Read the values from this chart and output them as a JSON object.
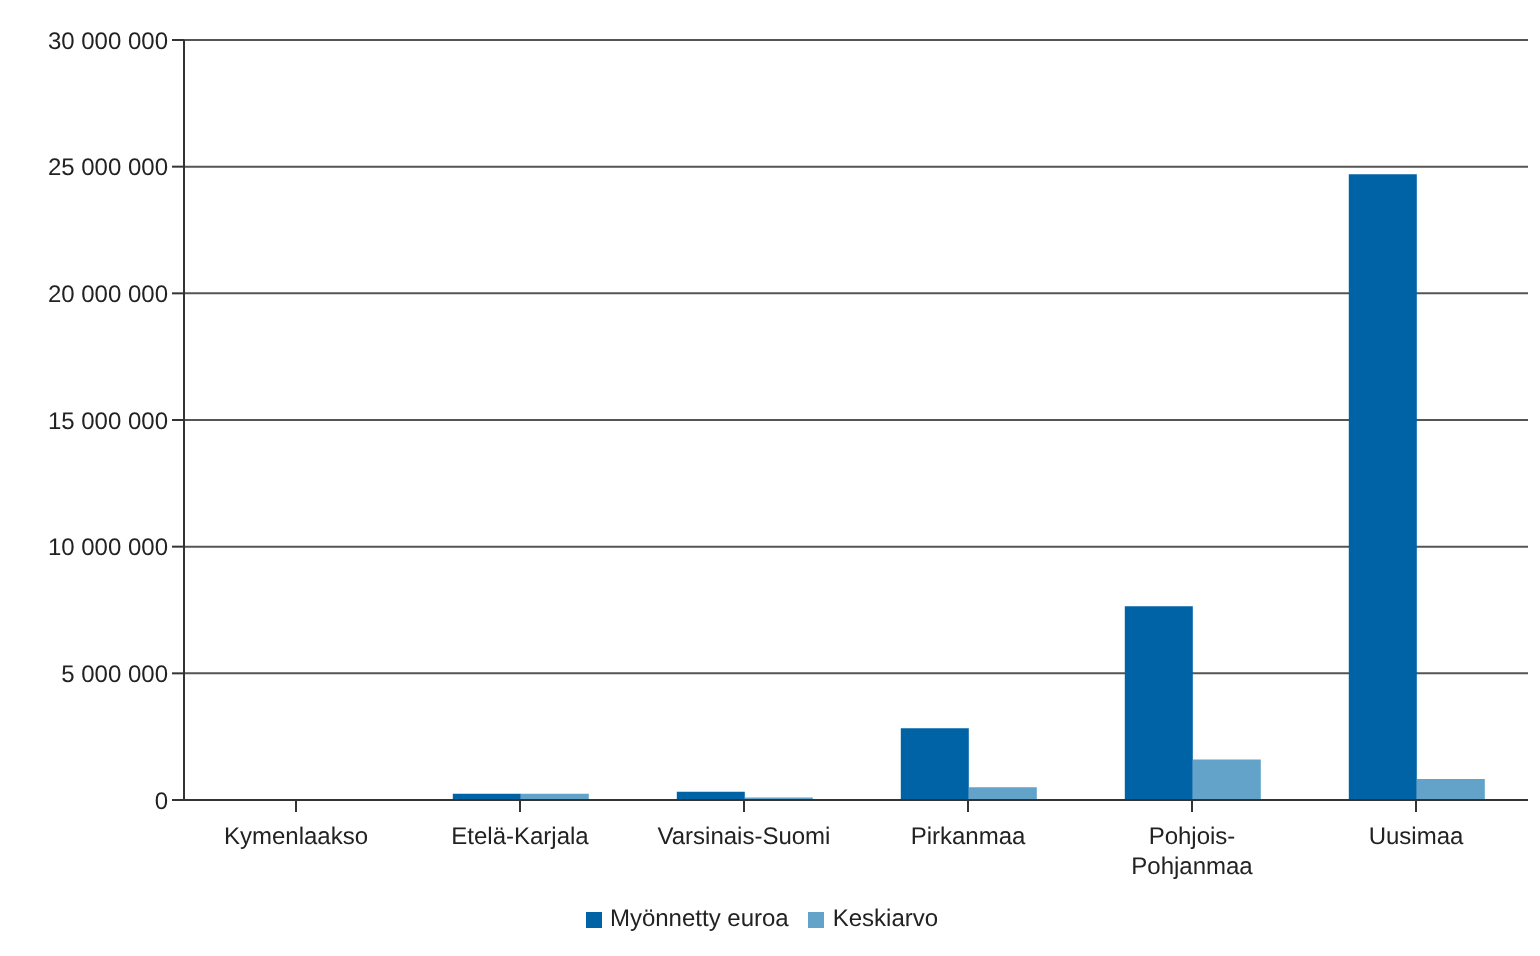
{
  "chart_data": {
    "type": "bar",
    "categories": [
      "Kymenlaakso",
      "Etelä-Karjala",
      "Varsinais-Suomi",
      "Pirkanmaa",
      "Pohjois-Pohjanmaa",
      "Uusimaa"
    ],
    "series": [
      {
        "name": "Myönnetty euroa",
        "color": "#0063a6",
        "values": [
          null,
          250000,
          330000,
          2830000,
          7650000,
          24700000
        ]
      },
      {
        "name": "Keskiarvo",
        "color": "#63a2c9",
        "values": [
          null,
          250000,
          100000,
          500000,
          1600000,
          830000
        ]
      }
    ],
    "ylim": [
      0,
      30000000
    ],
    "yticks": [
      0,
      5000000,
      10000000,
      15000000,
      20000000,
      25000000,
      30000000
    ],
    "grid": "y",
    "legend": "bottom"
  }
}
